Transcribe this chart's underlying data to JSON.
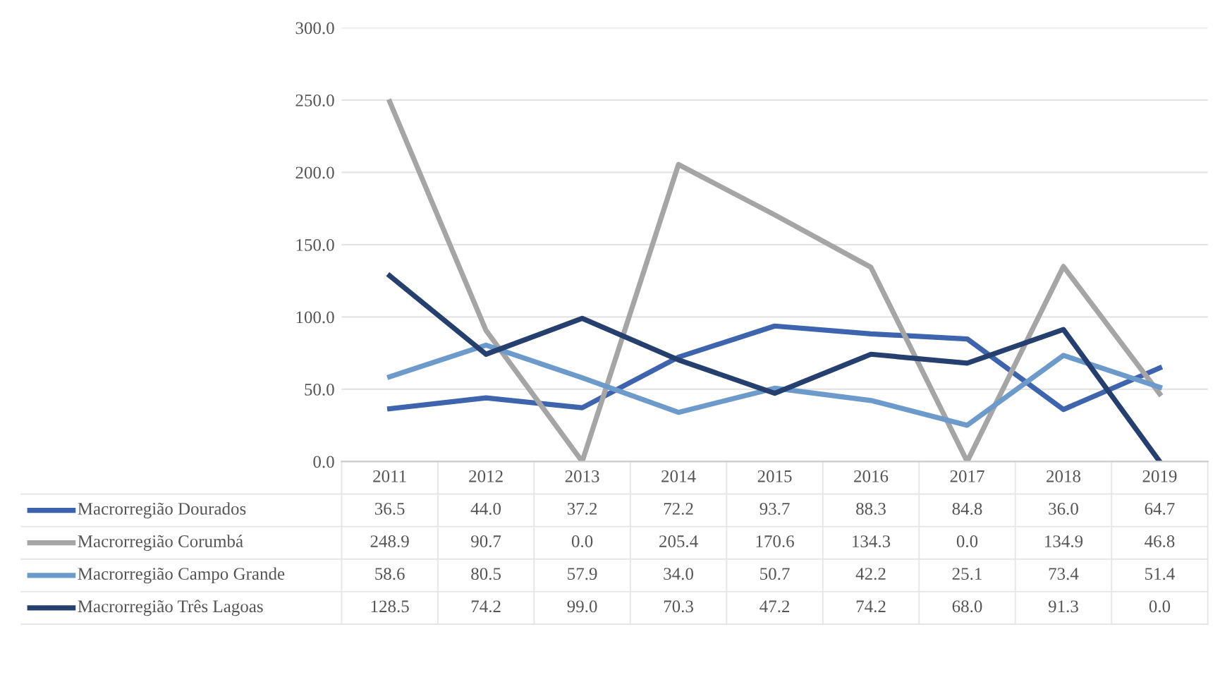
{
  "chart_data": {
    "type": "line",
    "categories": [
      "2011",
      "2012",
      "2013",
      "2014",
      "2015",
      "2016",
      "2017",
      "2018",
      "2019"
    ],
    "series": [
      {
        "name": "Macrorregião Dourados",
        "color": "#3e64ae",
        "values": [
          36.5,
          44.0,
          37.2,
          72.2,
          93.7,
          88.3,
          84.8,
          36.0,
          64.7
        ],
        "value_labels": [
          "36.5",
          "44.0",
          "37.2",
          "72.2",
          "93.7",
          "88.3",
          "84.8",
          "36.0",
          "64.7"
        ]
      },
      {
        "name": "Macrorregião Corumbá",
        "color": "#a5a5a5",
        "values": [
          248.9,
          90.7,
          0.0,
          205.4,
          170.6,
          134.3,
          0.0,
          134.9,
          46.8
        ],
        "value_labels": [
          "248.9",
          "90.7",
          "0.0",
          "205.4",
          "170.6",
          "134.3",
          "0.0",
          "134.9",
          "46.8"
        ]
      },
      {
        "name": "Macrorregião Campo Grande",
        "color": "#6b9acb",
        "values": [
          58.6,
          80.5,
          57.9,
          34.0,
          50.7,
          42.2,
          25.1,
          73.4,
          51.4
        ],
        "value_labels": [
          "58.6",
          "80.5",
          "57.9",
          "34.0",
          "50.7",
          "42.2",
          "25.1",
          "73.4",
          "51.4"
        ]
      },
      {
        "name": "Macrorregião Três Lagoas",
        "color": "#25406e",
        "values": [
          128.5,
          74.2,
          99.0,
          70.3,
          47.2,
          74.2,
          68.0,
          91.3,
          0.0
        ],
        "value_labels": [
          "128.5",
          "74.2",
          "99.0",
          "70.3",
          "47.2",
          "74.2",
          "68.0",
          "91.3",
          "0.0"
        ]
      }
    ],
    "ylim": [
      0,
      300
    ],
    "yticks": [
      {
        "value": 0,
        "label": "0.0"
      },
      {
        "value": 50,
        "label": "50.0"
      },
      {
        "value": 100,
        "label": "100.0"
      },
      {
        "value": 150,
        "label": "150.0"
      },
      {
        "value": 200,
        "label": "200.0"
      },
      {
        "value": 250,
        "label": "250.0"
      },
      {
        "value": 300,
        "label": "300.0"
      }
    ],
    "grid": "y",
    "legend": "bottom",
    "marker": "none",
    "line_style": "solid"
  }
}
